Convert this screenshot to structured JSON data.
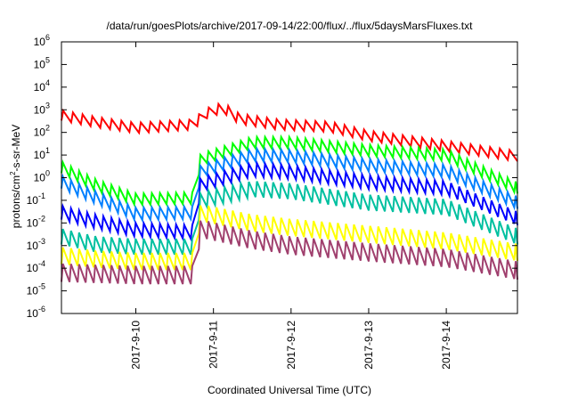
{
  "chart_data": {
    "type": "line",
    "title": "/data/run/goesPlots/archive/2017-09-14/22:00/flux/../flux/5daysMarsFluxes.txt",
    "xlabel": "Coordinated Universal Time (UTC)",
    "ylabel": {
      "base": "protons/cm",
      "sup": "2",
      "rest": "-s-sr-MeV"
    },
    "y_scale": "log",
    "ylim_exp": [
      -6,
      6
    ],
    "y_ticks": [
      {
        "exp": -6,
        "label": "-6"
      },
      {
        "exp": -5,
        "label": "-5"
      },
      {
        "exp": -4,
        "label": "-4"
      },
      {
        "exp": -3,
        "label": "-3"
      },
      {
        "exp": -2,
        "label": "-2"
      },
      {
        "exp": -1,
        "label": "-1"
      },
      {
        "exp": 0,
        "label": "0"
      },
      {
        "exp": 1,
        "label": "1"
      },
      {
        "exp": 2,
        "label": "2"
      },
      {
        "exp": 3,
        "label": "3"
      },
      {
        "exp": 4,
        "label": "4"
      },
      {
        "exp": 5,
        "label": "5"
      },
      {
        "exp": 6,
        "label": "6"
      }
    ],
    "y_tick_base": "10",
    "xlim": [
      "2017-09-09T01:00",
      "2017-09-14T22:00"
    ],
    "x_ticks": [
      {
        "t": "2017-09-10T00:00",
        "label": "2017-9-10"
      },
      {
        "t": "2017-09-11T00:00",
        "label": "2017-9-11"
      },
      {
        "t": "2017-09-12T00:00",
        "label": "2017-9-12"
      },
      {
        "t": "2017-09-13T00:00",
        "label": "2017-9-13"
      },
      {
        "t": "2017-09-14T00:00",
        "label": "2017-9-14"
      }
    ],
    "grid": false,
    "legend": "none",
    "series_style": "sawtooth",
    "series": [
      {
        "color": "#ff0000",
        "sawtooth_period_h": 3.0,
        "amplitude_decades": 0.45,
        "envelope": [
          [
            "2017-09-09T01:00",
            2.75
          ],
          [
            "2017-09-09T12:00",
            2.45
          ],
          [
            "2017-09-10T00:00",
            2.2
          ],
          [
            "2017-09-10T18:00",
            2.35
          ],
          [
            "2017-09-10T21:00",
            2.8
          ],
          [
            "2017-09-11T03:00",
            3.1
          ],
          [
            "2017-09-11T08:00",
            2.6
          ],
          [
            "2017-09-11T20:00",
            2.35
          ],
          [
            "2017-09-12T12:00",
            2.25
          ],
          [
            "2017-09-13T00:00",
            1.85
          ],
          [
            "2017-09-14T00:00",
            1.4
          ],
          [
            "2017-09-14T22:00",
            0.95
          ]
        ]
      },
      {
        "color": "#00ff00",
        "sawtooth_period_h": 2.5,
        "amplitude_decades": 0.5,
        "envelope": [
          [
            "2017-09-09T01:00",
            0.45
          ],
          [
            "2017-09-09T12:00",
            -0.35
          ],
          [
            "2017-09-10T00:00",
            -0.95
          ],
          [
            "2017-09-10T18:00",
            -0.9
          ],
          [
            "2017-09-10T20:00",
            0.8
          ],
          [
            "2017-09-11T12:00",
            1.55
          ],
          [
            "2017-09-12T00:00",
            1.55
          ],
          [
            "2017-09-13T00:00",
            1.2
          ],
          [
            "2017-09-14T00:00",
            1.0
          ],
          [
            "2017-09-14T22:00",
            -0.45
          ]
        ]
      },
      {
        "color": "#0080ff",
        "sawtooth_period_h": 2.5,
        "amplitude_decades": 0.55,
        "envelope": [
          [
            "2017-09-09T01:00",
            -0.2
          ],
          [
            "2017-09-09T12:00",
            -0.9
          ],
          [
            "2017-09-10T00:00",
            -1.6
          ],
          [
            "2017-09-10T18:00",
            -1.55
          ],
          [
            "2017-09-10T20:00",
            0.3
          ],
          [
            "2017-09-11T12:00",
            1.0
          ],
          [
            "2017-09-12T00:00",
            0.95
          ],
          [
            "2017-09-13T00:00",
            0.55
          ],
          [
            "2017-09-14T00:00",
            0.3
          ],
          [
            "2017-09-14T22:00",
            -1.1
          ]
        ]
      },
      {
        "color": "#0000ff",
        "sawtooth_period_h": 2.5,
        "amplitude_decades": 0.6,
        "envelope": [
          [
            "2017-09-09T01:00",
            -1.55
          ],
          [
            "2017-09-09T12:00",
            -1.95
          ],
          [
            "2017-09-10T00:00",
            -2.3
          ],
          [
            "2017-09-10T18:00",
            -2.4
          ],
          [
            "2017-09-10T20:00",
            -0.3
          ],
          [
            "2017-09-11T12:00",
            0.35
          ],
          [
            "2017-09-12T00:00",
            0.25
          ],
          [
            "2017-09-13T00:00",
            -0.2
          ],
          [
            "2017-09-14T00:00",
            -0.45
          ],
          [
            "2017-09-14T22:00",
            -1.8
          ]
        ]
      },
      {
        "color": "#00c0a0",
        "sawtooth_period_h": 2.5,
        "amplitude_decades": 0.7,
        "envelope": [
          [
            "2017-09-09T01:00",
            -2.6
          ],
          [
            "2017-09-09T12:00",
            -2.95
          ],
          [
            "2017-09-10T00:00",
            -3.05
          ],
          [
            "2017-09-10T18:00",
            -3.05
          ],
          [
            "2017-09-10T20:00",
            -1.0
          ],
          [
            "2017-09-11T12:00",
            -0.5
          ],
          [
            "2017-09-12T00:00",
            -0.6
          ],
          [
            "2017-09-13T00:00",
            -1.1
          ],
          [
            "2017-09-14T00:00",
            -1.3
          ],
          [
            "2017-09-14T22:00",
            -2.6
          ]
        ]
      },
      {
        "color": "#ffff00",
        "sawtooth_period_h": 2.5,
        "amplitude_decades": 0.75,
        "envelope": [
          [
            "2017-09-09T01:00",
            -3.45
          ],
          [
            "2017-09-09T12:00",
            -3.6
          ],
          [
            "2017-09-10T00:00",
            -3.7
          ],
          [
            "2017-09-10T18:00",
            -3.7
          ],
          [
            "2017-09-10T20:00",
            -1.55
          ],
          [
            "2017-09-11T12:00",
            -2.0
          ],
          [
            "2017-09-12T00:00",
            -2.2
          ],
          [
            "2017-09-13T00:00",
            -2.5
          ],
          [
            "2017-09-14T00:00",
            -2.8
          ],
          [
            "2017-09-14T22:00",
            -3.3
          ]
        ]
      },
      {
        "color": "#a0406e",
        "sawtooth_period_h": 2.5,
        "amplitude_decades": 0.8,
        "envelope": [
          [
            "2017-09-09T01:00",
            -4.2
          ],
          [
            "2017-09-09T12:00",
            -4.25
          ],
          [
            "2017-09-10T00:00",
            -4.3
          ],
          [
            "2017-09-10T18:00",
            -4.3
          ],
          [
            "2017-09-10T20:00",
            -2.25
          ],
          [
            "2017-09-11T12:00",
            -2.75
          ],
          [
            "2017-09-12T00:00",
            -3.0
          ],
          [
            "2017-09-13T00:00",
            -3.3
          ],
          [
            "2017-09-14T00:00",
            -3.55
          ],
          [
            "2017-09-14T22:00",
            -4.1
          ]
        ]
      }
    ]
  }
}
